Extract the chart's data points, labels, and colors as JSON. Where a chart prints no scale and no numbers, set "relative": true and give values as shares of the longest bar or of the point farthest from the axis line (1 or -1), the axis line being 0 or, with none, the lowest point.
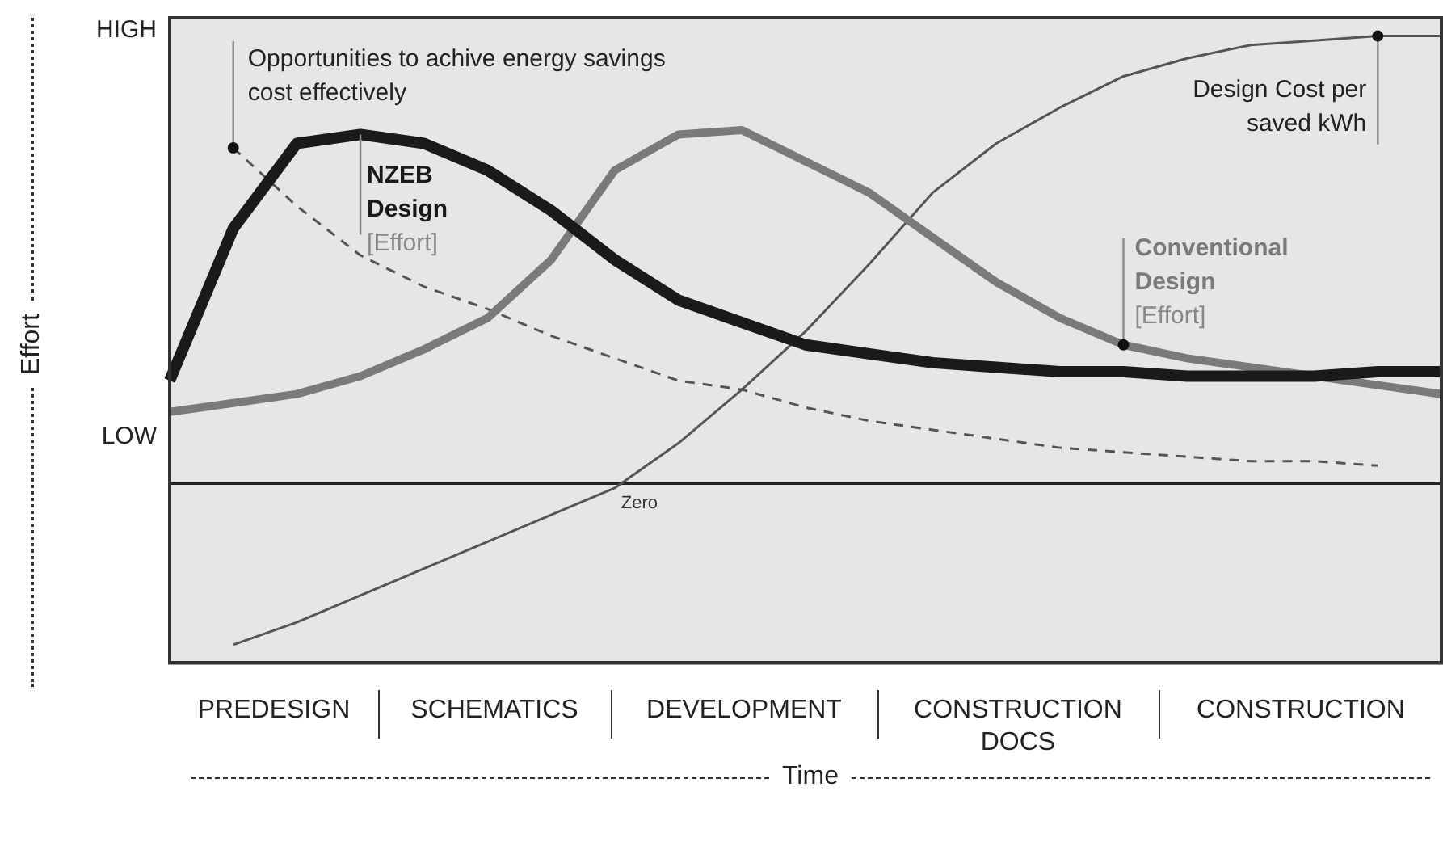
{
  "chart_data": {
    "type": "line",
    "relative": true,
    "xlabel": "Time",
    "ylabel": "Effort",
    "categories": [
      null,
      null,
      null,
      null,
      null,
      null,
      null,
      null,
      null,
      null,
      null,
      null,
      null,
      null,
      null,
      null,
      null,
      null,
      null,
      null,
      null
    ],
    "legend": false,
    "series": [
      {
        "name": "NZEB Design [Effort]",
        "color": "#1a1a1a",
        "line_style": "solid",
        "values": [
          0.23,
          0.57,
          0.76,
          0.78,
          0.76,
          0.7,
          0.61,
          0.5,
          0.41,
          0.36,
          0.31,
          0.29,
          0.27,
          0.26,
          0.25,
          0.25,
          0.24,
          0.24,
          0.24,
          0.25,
          0.25
        ]
      },
      {
        "name": "Conventional Design [Effort]",
        "color": "#7a7a7a",
        "line_style": "solid",
        "values": [
          0.16,
          0.18,
          0.2,
          0.24,
          0.3,
          0.37,
          0.5,
          0.7,
          0.78,
          0.79,
          0.72,
          0.65,
          0.55,
          0.45,
          0.37,
          0.31,
          0.28,
          0.26,
          0.24,
          0.22,
          0.2
        ]
      },
      {
        "name": "Design Cost per saved kWh",
        "color": "#555555",
        "line_style": "solid",
        "values": [
          null,
          -0.36,
          -0.31,
          -0.25,
          -0.19,
          -0.13,
          -0.07,
          -0.01,
          0.09,
          0.21,
          0.34,
          0.49,
          0.65,
          0.76,
          0.84,
          0.91,
          0.95,
          0.98,
          0.99,
          1,
          1
        ]
      },
      {
        "name": "Opportunities to achive energy savings cost effectively",
        "color": "#555555",
        "line_style": "dashed",
        "values": [
          null,
          0.75,
          0.62,
          0.51,
          0.44,
          0.39,
          0.33,
          0.28,
          0.23,
          0.21,
          0.17,
          0.14,
          0.12,
          0.1,
          0.08,
          0.07,
          0.06,
          0.05,
          0.05,
          0.04,
          null
        ]
      }
    ],
    "ref_lines": [
      {
        "axis": "y",
        "value": 0,
        "label": "Zero",
        "color": "#222222"
      }
    ],
    "annotations": [
      "HIGH",
      "LOW",
      "PREDESIGN",
      "SCHEMATICS",
      "DEVELOPMENT",
      "CONSTRUCTION DOCS",
      "CONSTRUCTION"
    ]
  }
}
